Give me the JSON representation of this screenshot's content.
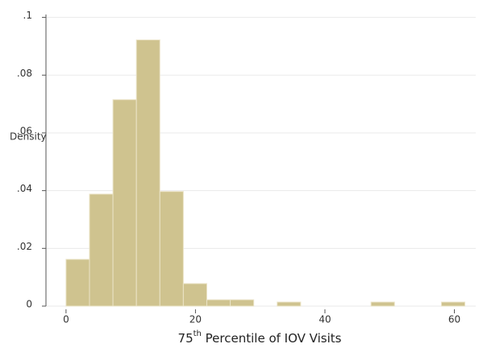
{
  "chart_data": {
    "type": "histogram",
    "y_label": "Density",
    "x_label": {
      "number": "75",
      "superscript": "th",
      "text": " Percentile of IOV Visits"
    },
    "bins": [
      0,
      3.625,
      7.25,
      10.875,
      14.5,
      18.125,
      21.75,
      25.375,
      29,
      32.625,
      36.25,
      39.875,
      43.5,
      47.125,
      50.75,
      54.375,
      58,
      61.625
    ],
    "values": [
      0.0162,
      0.0388,
      0.0715,
      0.0922,
      0.0397,
      0.0078,
      0.0022,
      0.0022,
      0,
      0.0014,
      0,
      0,
      0,
      0.0014,
      0,
      0,
      0.0014
    ],
    "color": "#cfc38f",
    "xlim": [
      -3.1,
      63.3
    ],
    "xticks": [
      0,
      20,
      40,
      60
    ],
    "ylim": [
      0,
      0.101
    ],
    "yticks": [
      0,
      {
        "value": 0.02,
        "label": ".02"
      },
      {
        "value": 0.04,
        "label": ".04"
      },
      {
        "value": 0.06,
        "label": ".06"
      },
      {
        "value": 0.08,
        "label": ".08"
      },
      {
        "value": 0.1,
        "label": ".1"
      }
    ],
    "grid": true
  }
}
